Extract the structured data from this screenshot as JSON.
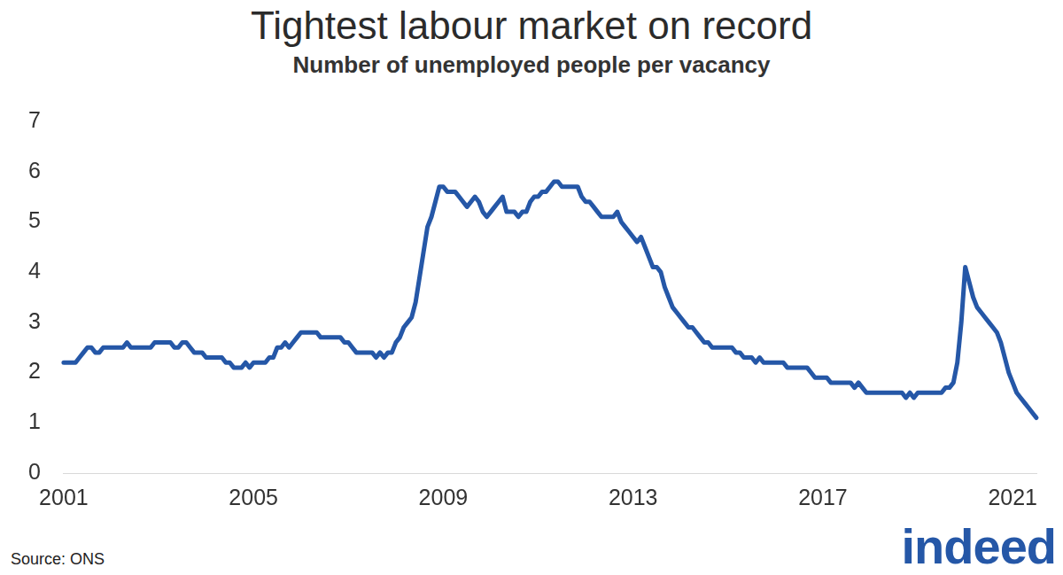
{
  "chart_data": {
    "type": "line",
    "title": "Tightest labour market on record",
    "subtitle": "Number of unemployed people per vacancy",
    "source": "Source: ONS",
    "logo": "indeed",
    "color": "#2557a7",
    "grid": false,
    "ylim": [
      0,
      7
    ],
    "yticks": [
      0,
      1,
      2,
      3,
      4,
      5,
      6,
      7
    ],
    "categories": [
      "2001",
      null,
      null,
      null,
      null,
      null,
      null,
      null,
      null,
      null,
      null,
      null,
      null,
      null,
      null,
      null,
      null,
      null,
      null,
      null,
      null,
      null,
      null,
      null,
      null,
      null,
      null,
      null,
      null,
      null,
      null,
      null,
      null,
      null,
      null,
      null,
      null,
      null,
      null,
      null,
      null,
      null,
      null,
      null,
      null,
      null,
      null,
      null,
      "2005",
      null,
      null,
      null,
      null,
      null,
      null,
      null,
      null,
      null,
      null,
      null,
      null,
      null,
      null,
      null,
      null,
      null,
      null,
      null,
      null,
      null,
      null,
      null,
      null,
      null,
      null,
      null,
      null,
      null,
      null,
      null,
      null,
      null,
      null,
      null,
      null,
      null,
      null,
      null,
      null,
      null,
      null,
      null,
      null,
      null,
      null,
      null,
      "2009",
      null,
      null,
      null,
      null,
      null,
      null,
      null,
      null,
      null,
      null,
      null,
      null,
      null,
      null,
      null,
      null,
      null,
      null,
      null,
      null,
      null,
      null,
      null,
      null,
      null,
      null,
      null,
      null,
      null,
      null,
      null,
      null,
      null,
      null,
      null,
      null,
      null,
      null,
      null,
      null,
      null,
      null,
      null,
      null,
      null,
      null,
      null,
      "2013",
      null,
      null,
      null,
      null,
      null,
      null,
      null,
      null,
      null,
      null,
      null,
      null,
      null,
      null,
      null,
      null,
      null,
      null,
      null,
      null,
      null,
      null,
      null,
      null,
      null,
      null,
      null,
      null,
      null,
      null,
      null,
      null,
      null,
      null,
      null,
      null,
      null,
      null,
      null,
      null,
      null,
      null,
      null,
      null,
      null,
      null,
      null,
      "2017",
      null,
      null,
      null,
      null,
      null,
      null,
      null,
      null,
      null,
      null,
      null,
      null,
      null,
      null,
      null,
      null,
      null,
      null,
      null,
      null,
      null,
      null,
      null,
      null,
      null,
      null,
      null,
      null,
      null,
      null,
      null,
      null,
      null,
      null,
      null,
      null,
      null,
      null,
      null,
      null,
      null,
      null,
      null,
      null,
      null,
      null,
      null,
      "2021",
      null,
      null,
      null,
      null,
      null,
      null
    ],
    "values": [
      2.2,
      2.2,
      2.2,
      2.2,
      2.3,
      2.4,
      2.5,
      2.5,
      2.4,
      2.4,
      2.5,
      2.5,
      2.5,
      2.5,
      2.5,
      2.5,
      2.6,
      2.5,
      2.5,
      2.5,
      2.5,
      2.5,
      2.5,
      2.6,
      2.6,
      2.6,
      2.6,
      2.6,
      2.5,
      2.5,
      2.6,
      2.6,
      2.5,
      2.4,
      2.4,
      2.4,
      2.3,
      2.3,
      2.3,
      2.3,
      2.3,
      2.2,
      2.2,
      2.1,
      2.1,
      2.1,
      2.2,
      2.1,
      2.2,
      2.2,
      2.2,
      2.2,
      2.3,
      2.3,
      2.5,
      2.5,
      2.6,
      2.5,
      2.6,
      2.7,
      2.8,
      2.8,
      2.8,
      2.8,
      2.8,
      2.7,
      2.7,
      2.7,
      2.7,
      2.7,
      2.7,
      2.6,
      2.6,
      2.5,
      2.4,
      2.4,
      2.4,
      2.4,
      2.4,
      2.3,
      2.4,
      2.3,
      2.4,
      2.4,
      2.6,
      2.7,
      2.9,
      3.0,
      3.1,
      3.4,
      3.9,
      4.4,
      4.9,
      5.1,
      5.4,
      5.7,
      5.7,
      5.6,
      5.6,
      5.6,
      5.5,
      5.4,
      5.3,
      5.4,
      5.5,
      5.4,
      5.2,
      5.1,
      5.2,
      5.3,
      5.4,
      5.5,
      5.2,
      5.2,
      5.2,
      5.1,
      5.2,
      5.2,
      5.4,
      5.5,
      5.5,
      5.6,
      5.6,
      5.7,
      5.8,
      5.8,
      5.7,
      5.7,
      5.7,
      5.7,
      5.7,
      5.5,
      5.4,
      5.4,
      5.3,
      5.2,
      5.1,
      5.1,
      5.1,
      5.1,
      5.2,
      5.0,
      4.9,
      4.8,
      4.7,
      4.6,
      4.7,
      4.5,
      4.3,
      4.1,
      4.1,
      4.0,
      3.7,
      3.5,
      3.3,
      3.2,
      3.1,
      3.0,
      2.9,
      2.9,
      2.8,
      2.7,
      2.6,
      2.6,
      2.5,
      2.5,
      2.5,
      2.5,
      2.5,
      2.5,
      2.4,
      2.4,
      2.3,
      2.3,
      2.3,
      2.2,
      2.3,
      2.2,
      2.2,
      2.2,
      2.2,
      2.2,
      2.2,
      2.1,
      2.1,
      2.1,
      2.1,
      2.1,
      2.1,
      2.0,
      1.9,
      1.9,
      1.9,
      1.9,
      1.8,
      1.8,
      1.8,
      1.8,
      1.8,
      1.8,
      1.7,
      1.8,
      1.7,
      1.6,
      1.6,
      1.6,
      1.6,
      1.6,
      1.6,
      1.6,
      1.6,
      1.6,
      1.6,
      1.5,
      1.6,
      1.5,
      1.6,
      1.6,
      1.6,
      1.6,
      1.6,
      1.6,
      1.6,
      1.7,
      1.7,
      1.8,
      2.2,
      3.0,
      4.1,
      3.8,
      3.5,
      3.3,
      3.2,
      3.1,
      3.0,
      2.9,
      2.8,
      2.6,
      2.3,
      2.0,
      1.8,
      1.6,
      1.5,
      1.4,
      1.3,
      1.2,
      1.1
    ]
  }
}
